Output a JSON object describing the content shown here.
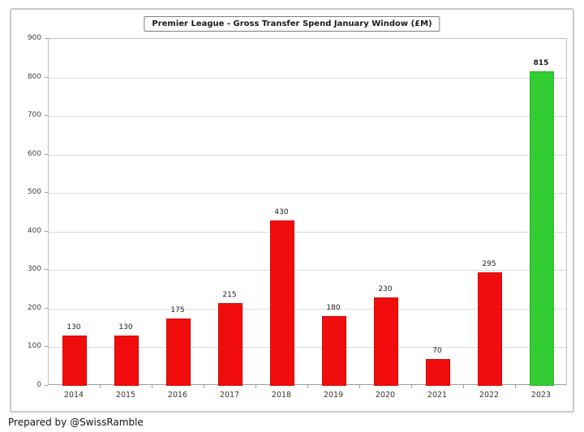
{
  "footer": "Prepared by @SwissRamble",
  "colors": {
    "bar_default": "#f10d0d",
    "bar_highlight": "#33cc33",
    "grid": "#dcdcdc",
    "axis": "#9e9e9e",
    "frame_border": "#c9c9c9"
  },
  "chart_data": {
    "type": "bar",
    "title": "Premier League - Gross Transfer Spend January Window (£M)",
    "categories": [
      "2014",
      "2015",
      "2016",
      "2017",
      "2018",
      "2019",
      "2020",
      "2021",
      "2022",
      "2023"
    ],
    "values": [
      130,
      130,
      175,
      215,
      430,
      180,
      230,
      70,
      295,
      815
    ],
    "highlight_index": 9,
    "xlabel": "",
    "ylabel": "",
    "ylim": [
      0,
      900
    ],
    "ytick_step": 100,
    "grid": true,
    "legend": "none",
    "value_labels": true
  }
}
